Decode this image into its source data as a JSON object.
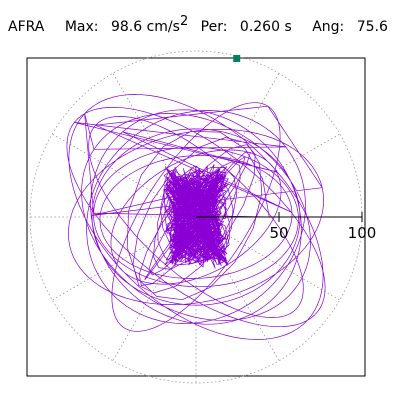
{
  "header": {
    "station": "AFRA",
    "max_label": "Max:",
    "max_value": "98.6",
    "max_unit": "cm/s",
    "max_unit_sup": "2",
    "per_label": "Per:",
    "per_value": "0.260 s",
    "ang_label": "Ang:",
    "ang_value": "75.6"
  },
  "chart_data": {
    "type": "polar-particle-motion",
    "radial_axis": {
      "ticks": [
        "50",
        "100"
      ],
      "range": [
        0,
        100
      ],
      "unit": "cm/s²"
    },
    "angular_grid_deg": [
      0,
      30,
      60,
      90,
      120,
      150,
      180,
      210,
      240,
      270,
      300,
      330
    ],
    "grid": true,
    "max_amplitude": 98.6,
    "max_angle_deg": 75.6,
    "trace_color": "#8a00d4",
    "marker_color": "#008060",
    "frame_color": "#000000",
    "grid_color": "#9a9a9a"
  }
}
